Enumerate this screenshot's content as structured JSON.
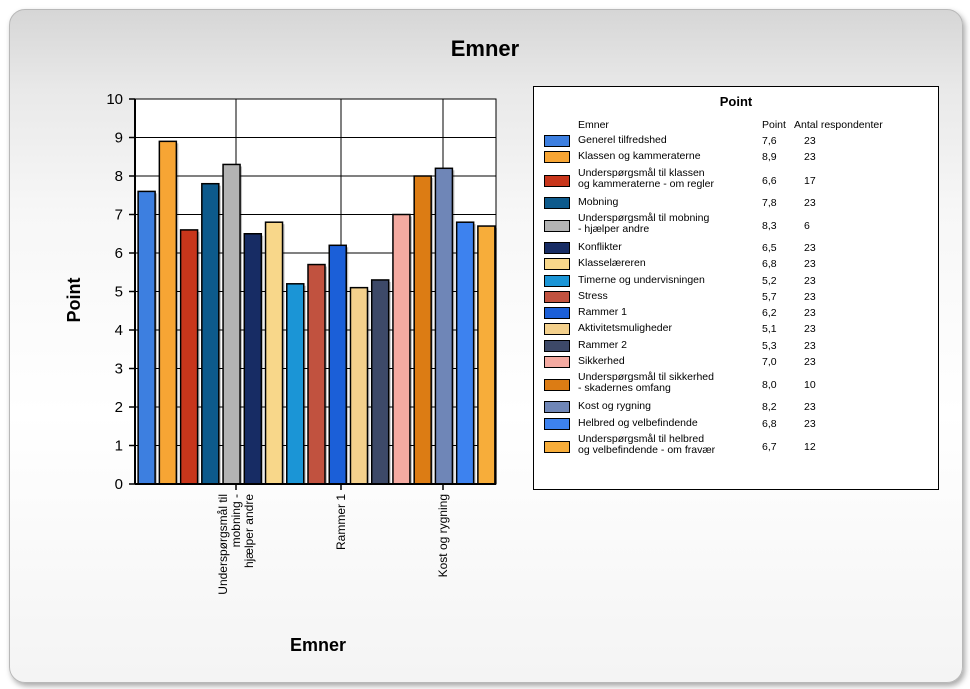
{
  "chart_data": {
    "type": "bar",
    "title": "Emner",
    "xlabel": "Emner",
    "ylabel": "Point",
    "ylim": [
      0,
      10
    ],
    "yticks": [
      0,
      1,
      2,
      3,
      4,
      5,
      6,
      7,
      8,
      9,
      10
    ],
    "grid": true,
    "legend_position": "right",
    "x_tick_labels": [
      {
        "index": 4,
        "text": "Underspørgsmål til mobning - hjælper andre"
      },
      {
        "index": 9,
        "text": "Rammer 1"
      },
      {
        "index": 14,
        "text": "Kost og rygning"
      }
    ],
    "series": [
      {
        "name": "Generel tilfredshed",
        "value": 7.6,
        "respondents": 23,
        "color": "#3d7fe0"
      },
      {
        "name": "Klassen og kammeraterne",
        "value": 8.9,
        "respondents": 23,
        "color": "#f7a534"
      },
      {
        "name": "Underspørgsmål til klassen og kammeraterne - om regler",
        "value": 6.6,
        "respondents": 17,
        "color": "#c8361b"
      },
      {
        "name": "Mobning",
        "value": 7.8,
        "respondents": 23,
        "color": "#0d5a8c"
      },
      {
        "name": "Underspørgsmål til mobning - hjælper andre",
        "value": 8.3,
        "respondents": 6,
        "color": "#b3b3b3"
      },
      {
        "name": "Konflikter",
        "value": 6.5,
        "respondents": 23,
        "color": "#172c64"
      },
      {
        "name": "Klasselæreren",
        "value": 6.8,
        "respondents": 23,
        "color": "#f8d78a"
      },
      {
        "name": "Timerne og undervisningen",
        "value": 5.2,
        "respondents": 23,
        "color": "#1b95d6"
      },
      {
        "name": "Stress",
        "value": 5.7,
        "respondents": 23,
        "color": "#c1523f"
      },
      {
        "name": "Rammer 1",
        "value": 6.2,
        "respondents": 23,
        "color": "#1b5fd8"
      },
      {
        "name": "Aktivitetsmuligheder",
        "value": 5.1,
        "respondents": 23,
        "color": "#f3d08c"
      },
      {
        "name": "Rammer 2",
        "value": 5.3,
        "respondents": 23,
        "color": "#3d4968"
      },
      {
        "name": "Sikkerhed",
        "value": 7.0,
        "respondents": 23,
        "color": "#f4aaa1"
      },
      {
        "name": "Underspørgsmål til sikkerhed - skadernes omfang",
        "value": 8.0,
        "respondents": 10,
        "color": "#dc7c14"
      },
      {
        "name": "Kost og rygning",
        "value": 8.2,
        "respondents": 23,
        "color": "#6f86b7"
      },
      {
        "name": "Helbred og velbefindende",
        "value": 6.8,
        "respondents": 23,
        "color": "#3d82ef"
      },
      {
        "name": "Underspørgsmål til helbred og velbefindende - om fravær",
        "value": 6.7,
        "respondents": 12,
        "color": "#f7ad3a"
      }
    ],
    "value_labels": [
      "7,6",
      "8,9",
      "6,6",
      "7,8",
      "8,3",
      "6,5",
      "6,8",
      "5,2",
      "5,7",
      "6,2",
      "5,1",
      "5,3",
      "7,0",
      "8,0",
      "8,2",
      "6,8",
      "6,7"
    ]
  },
  "legend": {
    "title": "Point",
    "col_name": "Emner",
    "col_point": "Point",
    "col_n": "Antal respondenter"
  }
}
